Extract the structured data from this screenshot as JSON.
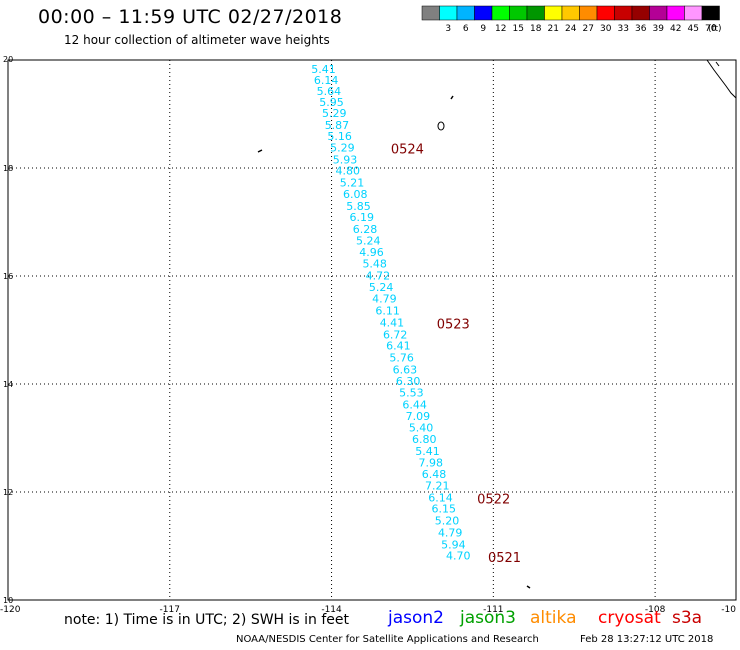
{
  "header": {
    "title": "00:00 – 11:59 UTC 02/27/2018",
    "subtitle": "12 hour collection of altimeter wave heights"
  },
  "legend": {
    "unit": "(ft)",
    "bins": [
      {
        "label": "",
        "color": "#808080"
      },
      {
        "label": "3",
        "color": "#00ffff"
      },
      {
        "label": "6",
        "color": "#00b4ff"
      },
      {
        "label": "9",
        "color": "#0000ff"
      },
      {
        "label": "12",
        "color": "#00ff00"
      },
      {
        "label": "15",
        "color": "#00c800"
      },
      {
        "label": "18",
        "color": "#009600"
      },
      {
        "label": "21",
        "color": "#ffff00"
      },
      {
        "label": "24",
        "color": "#ffc800"
      },
      {
        "label": "27",
        "color": "#ff8c00"
      },
      {
        "label": "30",
        "color": "#ff0000"
      },
      {
        "label": "33",
        "color": "#c80000"
      },
      {
        "label": "36",
        "color": "#960000"
      },
      {
        "label": "39",
        "color": "#b40096"
      },
      {
        "label": "42",
        "color": "#ff00ff"
      },
      {
        "label": "45",
        "color": "#ff96ff"
      },
      {
        "label": "70",
        "color": "#000000"
      }
    ]
  },
  "axes": {
    "lon_labels": [
      "-120",
      "-117",
      "-114",
      "-111",
      "-108",
      "-10"
    ],
    "lat_labels": [
      "20",
      "18",
      "16",
      "14",
      "12",
      "10"
    ]
  },
  "track": {
    "color": "#00d2ff",
    "points": [
      {
        "lon": -114.15,
        "lat": 19.83,
        "swh": "5.41"
      },
      {
        "lon": -114.1,
        "lat": 19.63,
        "swh": "6.14"
      },
      {
        "lon": -114.05,
        "lat": 19.43,
        "swh": "5.64"
      },
      {
        "lon": -114.0,
        "lat": 19.22,
        "swh": "5.95"
      },
      {
        "lon": -113.95,
        "lat": 19.02,
        "swh": "5.29"
      },
      {
        "lon": -113.9,
        "lat": 18.8,
        "swh": "5.87"
      },
      {
        "lon": -113.85,
        "lat": 18.59,
        "swh": "5.16"
      },
      {
        "lon": -113.8,
        "lat": 18.38,
        "swh": "5.29"
      },
      {
        "lon": -113.75,
        "lat": 18.16,
        "swh": "5.93"
      },
      {
        "lon": -113.7,
        "lat": 17.95,
        "swh": "4.80"
      },
      {
        "lon": -113.62,
        "lat": 17.73,
        "swh": "5.21"
      },
      {
        "lon": -113.56,
        "lat": 17.52,
        "swh": "6.08"
      },
      {
        "lon": -113.5,
        "lat": 17.3,
        "swh": "5.85"
      },
      {
        "lon": -113.44,
        "lat": 17.09,
        "swh": "6.19"
      },
      {
        "lon": -113.38,
        "lat": 16.87,
        "swh": "6.28"
      },
      {
        "lon": -113.32,
        "lat": 16.66,
        "swh": "5.24"
      },
      {
        "lon": -113.26,
        "lat": 16.44,
        "swh": "4.96"
      },
      {
        "lon": -113.2,
        "lat": 16.23,
        "swh": "5.48"
      },
      {
        "lon": -113.14,
        "lat": 16.01,
        "swh": "4.72"
      },
      {
        "lon": -113.08,
        "lat": 15.8,
        "swh": "5.24"
      },
      {
        "lon": -113.02,
        "lat": 15.58,
        "swh": "4.79"
      },
      {
        "lon": -112.96,
        "lat": 15.36,
        "swh": "6.11"
      },
      {
        "lon": -112.88,
        "lat": 15.14,
        "swh": "4.41"
      },
      {
        "lon": -112.82,
        "lat": 14.92,
        "swh": "6.72"
      },
      {
        "lon": -112.76,
        "lat": 14.71,
        "swh": "6.41"
      },
      {
        "lon": -112.7,
        "lat": 14.49,
        "swh": "5.76"
      },
      {
        "lon": -112.64,
        "lat": 14.27,
        "swh": "6.63"
      },
      {
        "lon": -112.58,
        "lat": 14.06,
        "swh": "6.30"
      },
      {
        "lon": -112.52,
        "lat": 13.84,
        "swh": "5.53"
      },
      {
        "lon": -112.46,
        "lat": 13.62,
        "swh": "6.44"
      },
      {
        "lon": -112.4,
        "lat": 13.41,
        "swh": "7.09"
      },
      {
        "lon": -112.34,
        "lat": 13.19,
        "swh": "5.40"
      },
      {
        "lon": -112.28,
        "lat": 12.98,
        "swh": "6.80"
      },
      {
        "lon": -112.22,
        "lat": 12.76,
        "swh": "5.41"
      },
      {
        "lon": -112.16,
        "lat": 12.55,
        "swh": "7.98"
      },
      {
        "lon": -112.1,
        "lat": 12.33,
        "swh": "6.48"
      },
      {
        "lon": -112.04,
        "lat": 12.12,
        "swh": "7.21"
      },
      {
        "lon": -111.98,
        "lat": 11.9,
        "swh": "6.14"
      },
      {
        "lon": -111.92,
        "lat": 11.69,
        "swh": "6.15"
      },
      {
        "lon": -111.86,
        "lat": 11.47,
        "swh": "5.20"
      },
      {
        "lon": -111.8,
        "lat": 11.25,
        "swh": "4.79"
      },
      {
        "lon": -111.74,
        "lat": 11.03,
        "swh": "5.94"
      },
      {
        "lon": -111.65,
        "lat": 10.82,
        "swh": "4.70"
      }
    ]
  },
  "time_labels": {
    "color": "#800000",
    "items": [
      {
        "text": "0524",
        "lon": -112.9,
        "lat": 18.36
      },
      {
        "text": "0523",
        "lon": -112.05,
        "lat": 15.12
      },
      {
        "text": "0522",
        "lon": -111.3,
        "lat": 11.88
      },
      {
        "text": "0521",
        "lon": -111.1,
        "lat": 10.8
      }
    ]
  },
  "note": "note:  1) Time is in UTC;  2) SWH is in feet",
  "satellites": [
    {
      "name": "jason2",
      "color": "#0000ff"
    },
    {
      "name": "jason3",
      "color": "#00a000"
    },
    {
      "name": "altika",
      "color": "#ff8c00"
    },
    {
      "name": "cryosat",
      "color": "#ff0000"
    },
    {
      "name": "s3a",
      "color": "#c80000"
    }
  ],
  "footer": {
    "credit": "NOAA/NESDIS Center for Satellite Applications and Research",
    "timestamp": "Feb 28 13:27:12 UTC 2018"
  }
}
